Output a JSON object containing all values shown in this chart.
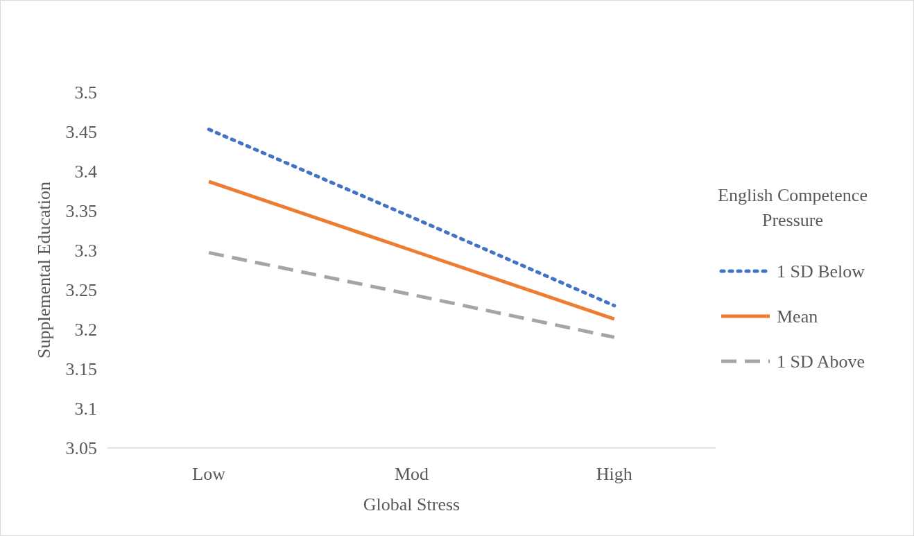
{
  "chart_data": {
    "type": "line",
    "xlabel": "Global Stress",
    "ylabel": "Supplemental Education",
    "legend_title": "English Competence Pressure",
    "categories": [
      "Low",
      "Mod",
      "High"
    ],
    "series": [
      {
        "name": "1 SD Below",
        "color": "#4472c4",
        "line_style": "dotted",
        "values": [
          3.453,
          3.342,
          3.23
        ]
      },
      {
        "name": "Mean",
        "color": "#ed7d31",
        "line_style": "solid",
        "values": [
          3.387,
          3.3,
          3.213
        ]
      },
      {
        "name": "1 SD Above",
        "color": "#a5a5a5",
        "line_style": "dashed",
        "values": [
          3.297,
          3.244,
          3.19
        ]
      }
    ],
    "ylim": [
      3.05,
      3.5
    ],
    "yticks": [
      3.05,
      3.1,
      3.15,
      3.2,
      3.25,
      3.3,
      3.35,
      3.4,
      3.45,
      3.5
    ],
    "grid": false,
    "legend": "right",
    "marker": "none"
  }
}
